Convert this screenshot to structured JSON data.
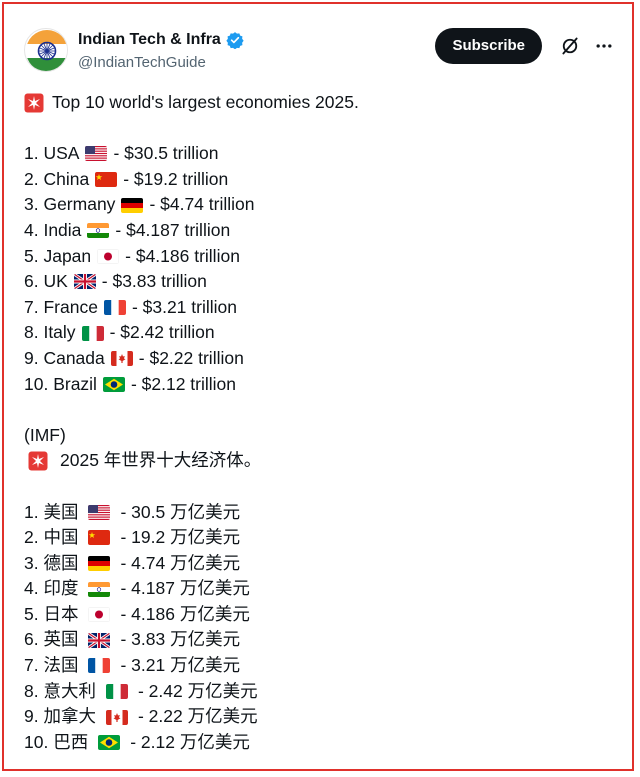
{
  "account": {
    "name": "Indian Tech & Infra",
    "handle": "@IndianTechGuide",
    "subscribe_label": "Subscribe"
  },
  "icons": {
    "avatar": "india-flag-avatar",
    "verified": "verified-badge-icon",
    "grok": "grok-icon",
    "more": "more-options-icon",
    "siren": "police-light-emoji"
  },
  "colors": {
    "frame_border": "#e0312b",
    "verified_blue": "#1d9bf0"
  },
  "post": {
    "title_en": "Top 10 world's largest economies 2025.",
    "source": "(IMF)",
    "title_cn": "2025 年世界十大经济体。",
    "list_en": [
      {
        "prefix": "1. USA",
        "flag": "us",
        "value": "- $30.5 trillion"
      },
      {
        "prefix": "2. China",
        "flag": "cn",
        "value": "- $19.2 trillion"
      },
      {
        "prefix": "3. Germany",
        "flag": "de",
        "value": "- $4.74 trillion"
      },
      {
        "prefix": "4. India",
        "flag": "in",
        "value": "- $4.187 trillion"
      },
      {
        "prefix": "5. Japan",
        "flag": "jp",
        "value": "- $4.186 trillion"
      },
      {
        "prefix": "6. UK",
        "flag": "uk",
        "value": "- $3.83 trillion"
      },
      {
        "prefix": "7. France",
        "flag": "fr",
        "value": "- $3.21 trillion"
      },
      {
        "prefix": "8. Italy",
        "flag": "it",
        "value": "- $2.42 trillion"
      },
      {
        "prefix": "9. Canada",
        "flag": "ca",
        "value": "- $2.22 trillion"
      },
      {
        "prefix": "10. Brazil",
        "flag": "br",
        "value": "- $2.12 trillion"
      }
    ],
    "list_cn": [
      {
        "prefix": "1. 美国",
        "flag": "us",
        "value": "- 30.5 万亿美元"
      },
      {
        "prefix": "2. 中国",
        "flag": "cn",
        "value": "- 19.2 万亿美元"
      },
      {
        "prefix": "3. 德国",
        "flag": "de",
        "value": "- 4.74 万亿美元"
      },
      {
        "prefix": "4. 印度",
        "flag": "in",
        "value": "- 4.187 万亿美元"
      },
      {
        "prefix": "5. 日本",
        "flag": "jp",
        "value": "- 4.186 万亿美元"
      },
      {
        "prefix": "6. 英国",
        "flag": "uk",
        "value": "- 3.83 万亿美元"
      },
      {
        "prefix": "7. 法国",
        "flag": "fr",
        "value": "- 3.21 万亿美元"
      },
      {
        "prefix": "8. 意大利",
        "flag": "it",
        "value": "- 2.42 万亿美元"
      },
      {
        "prefix": "9. 加拿大",
        "flag": "ca",
        "value": "- 2.22 万亿美元"
      },
      {
        "prefix": "10. 巴西",
        "flag": "br",
        "value": "- 2.12 万亿美元"
      }
    ]
  }
}
